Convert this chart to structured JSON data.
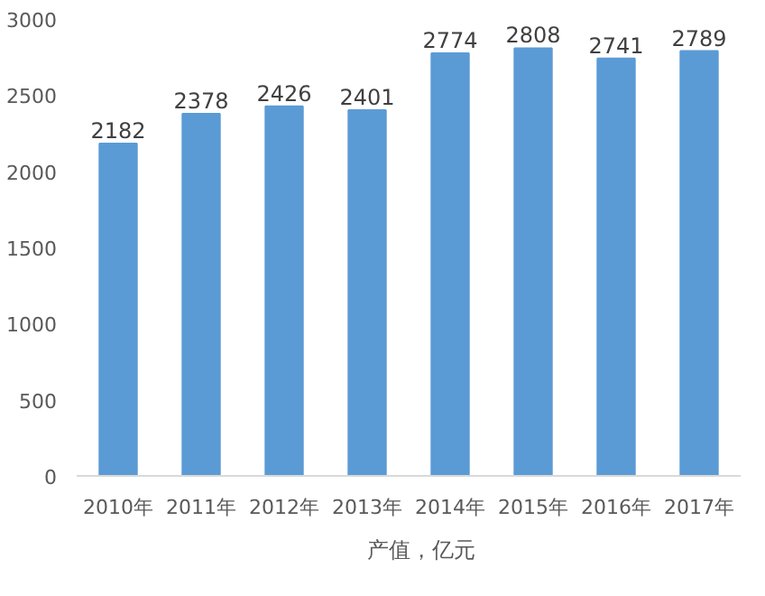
{
  "chart_data": {
    "type": "bar",
    "categories": [
      "2010年",
      "2011年",
      "2012年",
      "2013年",
      "2014年",
      "2015年",
      "2016年",
      "2017年"
    ],
    "series": [
      {
        "name": "产值，亿元",
        "color": "#5b9bd5",
        "values": [
          2182,
          2378,
          2426,
          2401,
          2774,
          2808,
          2741,
          2789
        ]
      }
    ],
    "ylim": [
      0,
      3000
    ],
    "yticks": [
      0,
      500,
      1000,
      1500,
      2000,
      2500,
      3000
    ],
    "data_labels": true,
    "legend": "bottom",
    "grid": false
  }
}
